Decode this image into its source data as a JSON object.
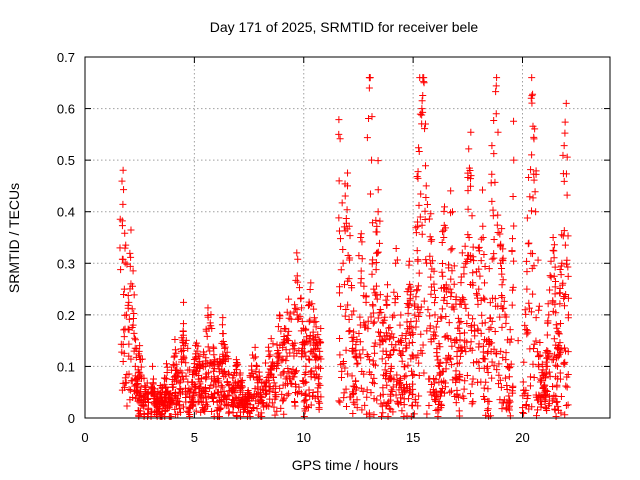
{
  "chart_data": {
    "type": "scatter",
    "title": "Day 171 of 2025, SRMTID for receiver bele",
    "xlabel": "GPS time / hours",
    "ylabel": "SRMTID / TECUs",
    "xlim": [
      0,
      24
    ],
    "ylim": [
      0,
      0.7
    ],
    "xticks": [
      0,
      5,
      10,
      15,
      20
    ],
    "yticks": [
      0,
      0.1,
      0.2,
      0.3,
      0.4,
      0.5,
      0.6,
      0.7
    ],
    "xtick_labels": [
      "0",
      "5",
      "10",
      "15",
      "20"
    ],
    "ytick_labels": [
      "0",
      "0.1",
      "0.2",
      "0.3",
      "0.4",
      "0.5",
      "0.6",
      "0.7"
    ],
    "grid": true,
    "marker": "+",
    "color": "#ff0000",
    "series": [
      {
        "name": "SRMTID",
        "x": [
          1.6,
          1.8,
          1.9,
          2.0,
          2.1,
          2.2,
          2.3,
          2.4,
          2.5,
          2.7,
          2.9,
          3.1,
          3.3,
          3.5,
          3.7,
          3.9,
          4.1,
          4.3,
          4.5,
          4.7,
          4.9,
          5.1,
          5.3,
          5.5,
          5.7,
          5.9,
          6.1,
          6.3,
          6.5,
          6.7,
          6.9,
          7.1,
          7.3,
          7.5,
          7.7,
          7.9,
          8.1,
          8.3,
          8.5,
          8.7,
          8.9,
          9.1,
          9.3,
          9.5,
          9.7,
          9.9,
          10.1,
          10.3,
          10.5,
          10.7,
          11.6,
          11.8,
          12.0,
          12.2,
          12.4,
          12.6,
          12.8,
          13.0,
          13.1,
          13.2,
          13.4,
          13.6,
          13.8,
          14.0,
          14.2,
          14.4,
          14.6,
          14.8,
          15.0,
          15.2,
          15.4,
          15.5,
          15.6,
          15.8,
          16.0,
          16.2,
          16.4,
          16.6,
          16.8,
          17.0,
          17.2,
          17.4,
          17.6,
          17.8,
          18.0,
          18.2,
          18.4,
          18.6,
          18.8,
          19.0,
          19.2,
          19.4,
          19.6,
          19.8,
          20.0,
          20.2,
          20.4,
          20.6,
          20.8,
          21.0,
          21.2,
          21.4,
          21.6,
          21.8,
          22.0,
          22.1
        ],
        "y": [
          0.33,
          0.25,
          0.2,
          0.12,
          0.26,
          0.18,
          0.1,
          0.05,
          0.08,
          0.04,
          0.03,
          0.05,
          0.02,
          0.04,
          0.06,
          0.03,
          0.08,
          0.05,
          0.12,
          0.07,
          0.04,
          0.09,
          0.06,
          0.1,
          0.13,
          0.08,
          0.05,
          0.11,
          0.07,
          0.03,
          0.06,
          0.05,
          0.02,
          0.04,
          0.08,
          0.06,
          0.03,
          0.07,
          0.1,
          0.05,
          0.12,
          0.09,
          0.15,
          0.08,
          0.2,
          0.13,
          0.1,
          0.16,
          0.12,
          0.08,
          0.55,
          0.3,
          0.45,
          0.2,
          0.12,
          0.35,
          0.18,
          0.64,
          0.5,
          0.25,
          0.4,
          0.15,
          0.22,
          0.1,
          0.3,
          0.18,
          0.08,
          0.25,
          0.12,
          0.38,
          0.6,
          0.65,
          0.45,
          0.3,
          0.2,
          0.1,
          0.35,
          0.25,
          0.4,
          0.15,
          0.22,
          0.3,
          0.48,
          0.18,
          0.25,
          0.35,
          0.1,
          0.42,
          0.59,
          0.3,
          0.2,
          0.08,
          0.5,
          0.15,
          0.02,
          0.25,
          0.62,
          0.4,
          0.12,
          0.05,
          0.2,
          0.35,
          0.1,
          0.3,
          0.61,
          0.2
        ],
        "n_points_drawn": 2200
      }
    ]
  }
}
